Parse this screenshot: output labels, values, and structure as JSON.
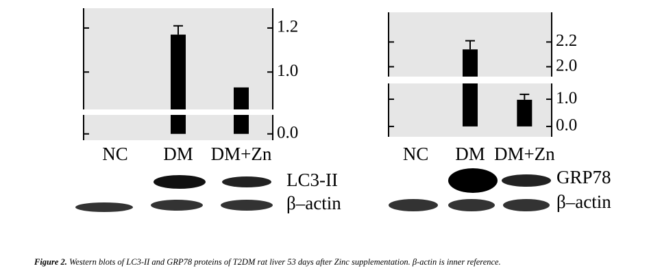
{
  "chart_data": [
    {
      "type": "bar",
      "categories": [
        "NC",
        "DM",
        "DM+Zn"
      ],
      "values": [
        0,
        1.17,
        0.93
      ],
      "errors": [
        0,
        0.04,
        0
      ],
      "color": "#000000",
      "background": "#e6e6e6",
      "axis_segments": [
        {
          "ylim": [
            -0.03,
            0.09
          ]
        },
        {
          "ylim": [
            0.83,
            1.29
          ]
        }
      ],
      "yticks": [
        {
          "value": 0,
          "label": "0.0"
        },
        {
          "value": 1,
          "label": "1.0"
        },
        1.2
      ],
      "blots": [
        "LC3-II",
        "β–actin"
      ]
    },
    {
      "type": "bar",
      "categories": [
        "NC",
        "DM",
        "DM+Zn"
      ],
      "values": [
        0,
        2.14,
        0.98
      ],
      "errors": [
        0,
        0.07,
        0.2
      ],
      "color": "#000000",
      "background": "#e6e6e6",
      "axis_segments": [
        {
          "ylim": [
            -0.38,
            1.58
          ]
        },
        {
          "ylim": [
            1.92,
            2.44
          ]
        }
      ],
      "yticks": [
        {
          "value": 0,
          "label": "0.0"
        },
        {
          "value": 1,
          "label": "1.0"
        },
        {
          "value": 2,
          "label": "2.0"
        },
        2.2
      ],
      "blots": [
        "GRP78",
        "β–actin"
      ]
    }
  ],
  "caption": {
    "label": "Figure 2.",
    "text": "Western blots of LC3-II and GRP78 proteins of T2DM rat liver 53 days after Zinc supplementation. β-actin is inner reference."
  }
}
